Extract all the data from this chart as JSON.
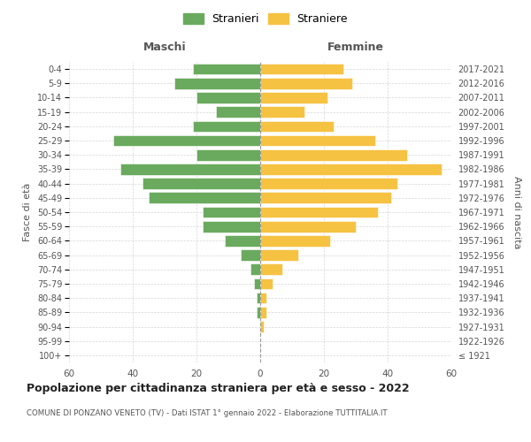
{
  "age_groups": [
    "100+",
    "95-99",
    "90-94",
    "85-89",
    "80-84",
    "75-79",
    "70-74",
    "65-69",
    "60-64",
    "55-59",
    "50-54",
    "45-49",
    "40-44",
    "35-39",
    "30-34",
    "25-29",
    "20-24",
    "15-19",
    "10-14",
    "5-9",
    "0-4"
  ],
  "birth_years": [
    "≤ 1921",
    "1922-1926",
    "1927-1931",
    "1932-1936",
    "1937-1941",
    "1942-1946",
    "1947-1951",
    "1952-1956",
    "1957-1961",
    "1962-1966",
    "1967-1971",
    "1972-1976",
    "1977-1981",
    "1982-1986",
    "1987-1991",
    "1992-1996",
    "1997-2001",
    "2002-2006",
    "2007-2011",
    "2012-2016",
    "2017-2021"
  ],
  "maschi": [
    0,
    0,
    0,
    1,
    1,
    2,
    3,
    6,
    11,
    18,
    18,
    35,
    37,
    44,
    20,
    46,
    21,
    14,
    20,
    27,
    21
  ],
  "femmine": [
    0,
    0,
    1,
    2,
    2,
    4,
    7,
    12,
    22,
    30,
    37,
    41,
    43,
    57,
    46,
    36,
    23,
    14,
    21,
    29,
    26
  ],
  "male_color": "#6aaa5e",
  "female_color": "#f5c242",
  "bar_edge_color": "white",
  "dashed_line_color": "#999999",
  "grid_color": "#cccccc",
  "title": "Popolazione per cittadinanza straniera per età e sesso - 2022",
  "subtitle": "COMUNE DI PONZANO VENETO (TV) - Dati ISTAT 1° gennaio 2022 - Elaborazione TUTTITALIA.IT",
  "xlabel_left": "Maschi",
  "xlabel_right": "Femmine",
  "ylabel_left": "Fasce di età",
  "ylabel_right": "Anni di nascita",
  "legend_stranieri": "Stranieri",
  "legend_straniere": "Straniere",
  "xlim": 60,
  "background_color": "#ffffff",
  "text_color": "#555555"
}
